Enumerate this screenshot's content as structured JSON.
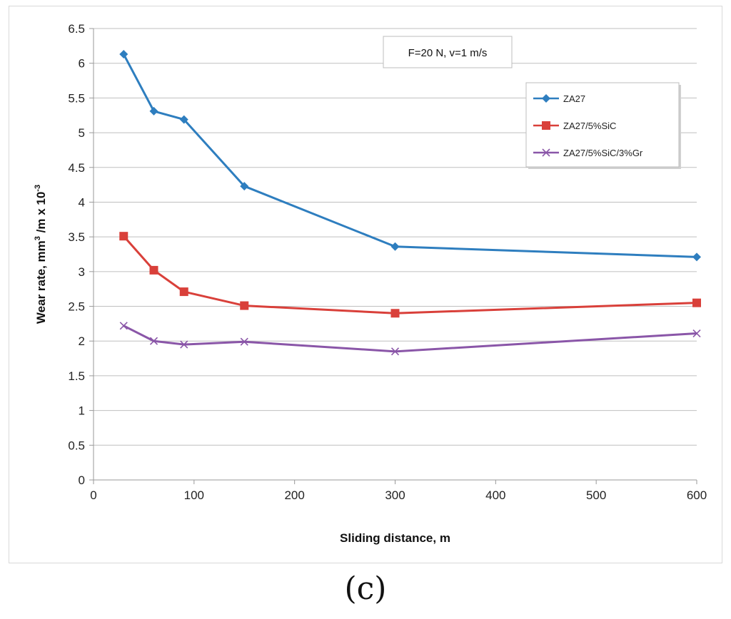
{
  "panel_label": "(c)",
  "chart_data": {
    "type": "line",
    "annotation": "F=20 N,  v=1 m/s",
    "xlabel": "Sliding distance,  m",
    "ylabel_main": "Wear rate,  mm",
    "ylabel_sup1": "3",
    "ylabel_mid": " /m  x 10",
    "ylabel_sup2": "-3",
    "xlim": [
      0,
      600
    ],
    "ylim": [
      0,
      6.5
    ],
    "xticks": [
      0,
      100,
      200,
      300,
      400,
      500,
      600
    ],
    "yticks": [
      0,
      0.5,
      1,
      1.5,
      2,
      2.5,
      3,
      3.5,
      4,
      4.5,
      5,
      5.5,
      6,
      6.5
    ],
    "grid": true,
    "legend_position": "upper-right",
    "series": [
      {
        "name": "ZA27",
        "color": "#2e7ebf",
        "marker": "diamond",
        "x": [
          30,
          60,
          90,
          150,
          300,
          600
        ],
        "y": [
          6.13,
          5.31,
          5.19,
          4.23,
          3.36,
          3.21
        ]
      },
      {
        "name": "ZA27/5%SiC",
        "color": "#d9403a",
        "marker": "square",
        "x": [
          30,
          60,
          90,
          150,
          300,
          600
        ],
        "y": [
          3.51,
          3.02,
          2.71,
          2.51,
          2.4,
          2.55
        ]
      },
      {
        "name": "ZA27/5%SiC/3%Gr",
        "color": "#8a56a8",
        "marker": "x",
        "x": [
          30,
          60,
          90,
          150,
          300,
          600
        ],
        "y": [
          2.22,
          2.0,
          1.95,
          1.99,
          1.85,
          2.11
        ]
      }
    ]
  }
}
